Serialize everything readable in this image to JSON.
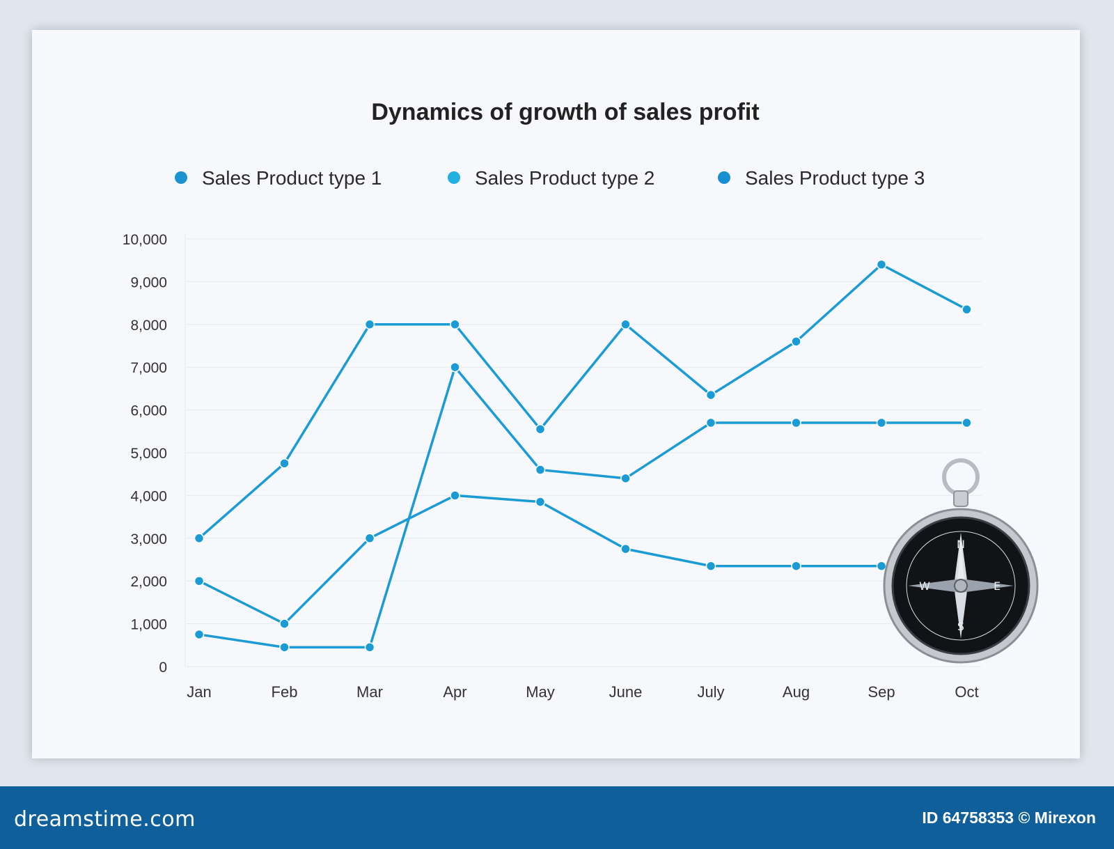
{
  "colors": {
    "series_line": "#1a9bd6",
    "legend_1": "#1c94d2",
    "legend_2": "#21b0e0",
    "legend_3": "#178fd0",
    "grid": "#e6e9ef",
    "axis_text": "#333333",
    "paper": "#f7f8fb",
    "footer": "#0f5f9b"
  },
  "chart_data": {
    "type": "line",
    "title": "Dynamics of growth of sales profit",
    "categories": [
      "Jan",
      "Feb",
      "Mar",
      "Apr",
      "May",
      "June",
      "July",
      "Aug",
      "Sep",
      "Oct"
    ],
    "series": [
      {
        "name": "Sales Product type 1",
        "values": [
          3000,
          4750,
          8000,
          8000,
          5550,
          8000,
          6350,
          7600,
          9400,
          8350
        ]
      },
      {
        "name": "Sales Product type 2",
        "values": [
          2000,
          1000,
          3000,
          4000,
          3850,
          2750,
          2350,
          2350,
          2350,
          null
        ]
      },
      {
        "name": "Sales Product type 3",
        "values": [
          750,
          450,
          450,
          7000,
          4600,
          4400,
          5700,
          5700,
          5700,
          5700
        ]
      }
    ],
    "ylim": [
      0,
      10000
    ],
    "yticks": [
      "0",
      "1,000",
      "2,000",
      "3,000",
      "4,000",
      "5,000",
      "6,000",
      "7,000",
      "8,000",
      "9,000",
      "10,000"
    ],
    "grid": true,
    "legend_position": "top"
  },
  "footer": {
    "logo": "dreamstime.com",
    "credit": "ID 64758353 © Mirexon"
  },
  "icons": {
    "compass": "compass-icon"
  }
}
